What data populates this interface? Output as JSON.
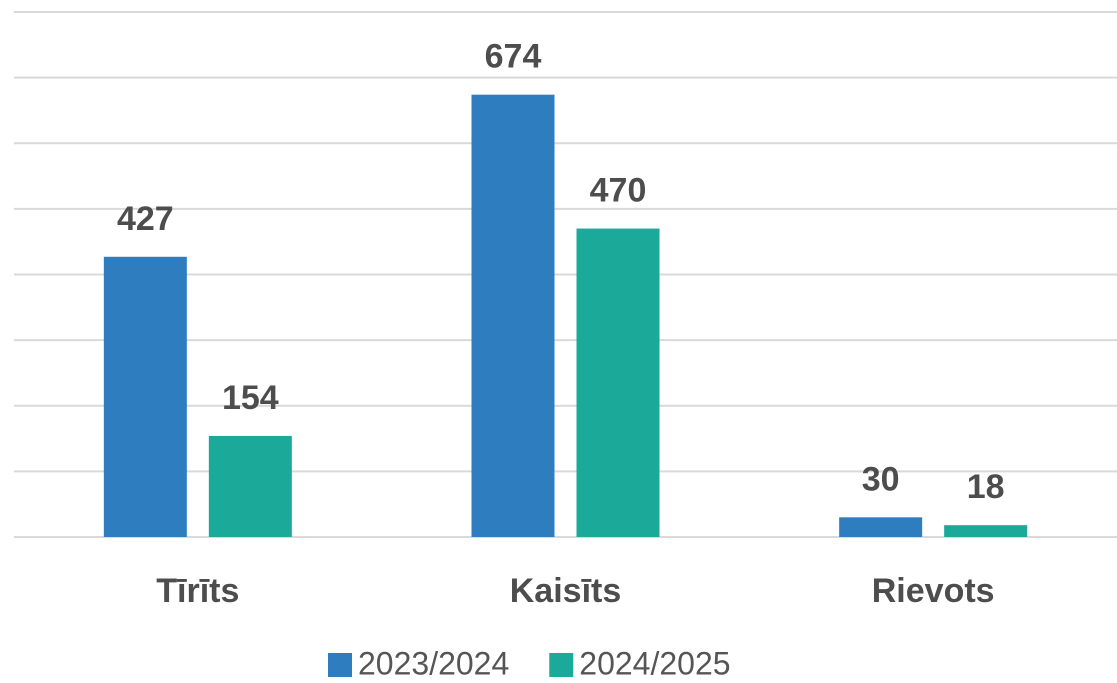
{
  "chart_data": {
    "type": "bar",
    "categories": [
      "Tīrīts",
      "Kaisīts",
      "Rievots"
    ],
    "series": [
      {
        "name": "2023/2024",
        "color": "#2e7dbf",
        "values": [
          427,
          674,
          30
        ]
      },
      {
        "name": "2024/2025",
        "color": "#1ba99a",
        "values": [
          154,
          470,
          18
        ]
      }
    ],
    "ylim": [
      0,
      800
    ],
    "yticks": [
      0,
      100,
      200,
      300,
      400,
      500,
      600,
      700,
      800
    ],
    "grid": true,
    "legend": "bottom"
  }
}
